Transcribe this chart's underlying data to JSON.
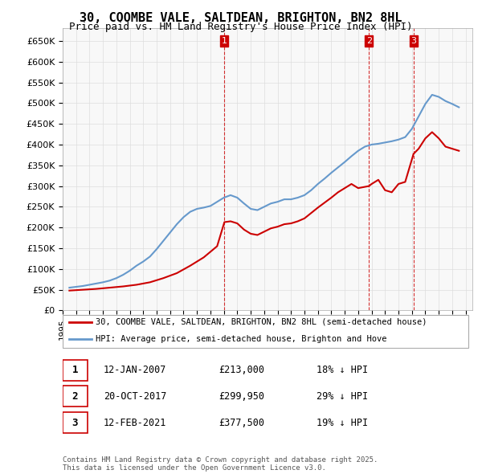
{
  "title": "30, COOMBE VALE, SALTDEAN, BRIGHTON, BN2 8HL",
  "subtitle": "Price paid vs. HM Land Registry's House Price Index (HPI)",
  "legend_line1": "30, COOMBE VALE, SALTDEAN, BRIGHTON, BN2 8HL (semi-detached house)",
  "legend_line2": "HPI: Average price, semi-detached house, Brighton and Hove",
  "footer": "Contains HM Land Registry data © Crown copyright and database right 2025.\nThis data is licensed under the Open Government Licence v3.0.",
  "sale_color": "#cc0000",
  "hpi_color": "#6699cc",
  "transaction_color": "#cc0000",
  "transactions": [
    {
      "num": 1,
      "date": "12-JAN-2007",
      "price": 213000,
      "pct": "18% ↓ HPI",
      "x_year": 2007.04
    },
    {
      "num": 2,
      "date": "20-OCT-2017",
      "price": 299950,
      "pct": "29% ↓ HPI",
      "x_year": 2017.8
    },
    {
      "num": 3,
      "date": "12-FEB-2021",
      "price": 377500,
      "pct": "19% ↓ HPI",
      "x_year": 2021.12
    }
  ],
  "ylim": [
    0,
    680000
  ],
  "xlim_start": 1995,
  "xlim_end": 2025.5,
  "yticks": [
    0,
    50000,
    100000,
    150000,
    200000,
    250000,
    300000,
    350000,
    400000,
    450000,
    500000,
    550000,
    600000,
    650000
  ],
  "ytick_labels": [
    "£0",
    "£50K",
    "£100K",
    "£150K",
    "£200K",
    "£250K",
    "£300K",
    "£350K",
    "£400K",
    "£450K",
    "£500K",
    "£550K",
    "£600K",
    "£650K"
  ],
  "hpi_data": {
    "years": [
      1995.5,
      1996.0,
      1996.5,
      1997.0,
      1997.5,
      1998.0,
      1998.5,
      1999.0,
      1999.5,
      2000.0,
      2000.5,
      2001.0,
      2001.5,
      2002.0,
      2002.5,
      2003.0,
      2003.5,
      2004.0,
      2004.5,
      2005.0,
      2005.5,
      2006.0,
      2006.5,
      2007.0,
      2007.5,
      2008.0,
      2008.5,
      2009.0,
      2009.5,
      2010.0,
      2010.5,
      2011.0,
      2011.5,
      2012.0,
      2012.5,
      2013.0,
      2013.5,
      2014.0,
      2014.5,
      2015.0,
      2015.5,
      2016.0,
      2016.5,
      2017.0,
      2017.5,
      2018.0,
      2018.5,
      2019.0,
      2019.5,
      2020.0,
      2020.5,
      2021.0,
      2021.5,
      2022.0,
      2022.5,
      2023.0,
      2023.5,
      2024.0,
      2024.5
    ],
    "values": [
      55000,
      57000,
      59000,
      62000,
      65000,
      68000,
      72000,
      78000,
      86000,
      96000,
      108000,
      118000,
      130000,
      148000,
      168000,
      188000,
      208000,
      225000,
      238000,
      245000,
      248000,
      252000,
      262000,
      272000,
      278000,
      272000,
      258000,
      245000,
      242000,
      250000,
      258000,
      262000,
      268000,
      268000,
      272000,
      278000,
      290000,
      305000,
      318000,
      332000,
      345000,
      358000,
      372000,
      385000,
      395000,
      400000,
      402000,
      405000,
      408000,
      412000,
      418000,
      438000,
      468000,
      498000,
      520000,
      515000,
      505000,
      498000,
      490000
    ]
  },
  "price_data": {
    "years": [
      1995.5,
      1996.5,
      1997.5,
      1998.5,
      1999.5,
      2000.5,
      2001.5,
      2002.5,
      2003.5,
      2004.5,
      2005.5,
      2006.5,
      2007.04,
      2007.5,
      2008.0,
      2008.5,
      2009.0,
      2009.5,
      2010.0,
      2010.5,
      2011.0,
      2011.5,
      2012.0,
      2012.5,
      2013.0,
      2013.5,
      2014.0,
      2014.5,
      2015.0,
      2015.5,
      2016.0,
      2016.5,
      2017.0,
      2017.8,
      2018.0,
      2018.5,
      2019.0,
      2019.5,
      2020.0,
      2020.5,
      2021.12,
      2021.5,
      2022.0,
      2022.5,
      2023.0,
      2023.5,
      2024.0,
      2024.5
    ],
    "values": [
      48000,
      50000,
      52000,
      55000,
      58000,
      62000,
      68000,
      78000,
      90000,
      108000,
      128000,
      155000,
      213000,
      215000,
      210000,
      195000,
      185000,
      182000,
      190000,
      198000,
      202000,
      208000,
      210000,
      215000,
      222000,
      235000,
      248000,
      260000,
      272000,
      285000,
      295000,
      305000,
      295000,
      299950,
      305000,
      315000,
      290000,
      285000,
      305000,
      310000,
      377500,
      390000,
      415000,
      430000,
      415000,
      395000,
      390000,
      385000
    ]
  }
}
